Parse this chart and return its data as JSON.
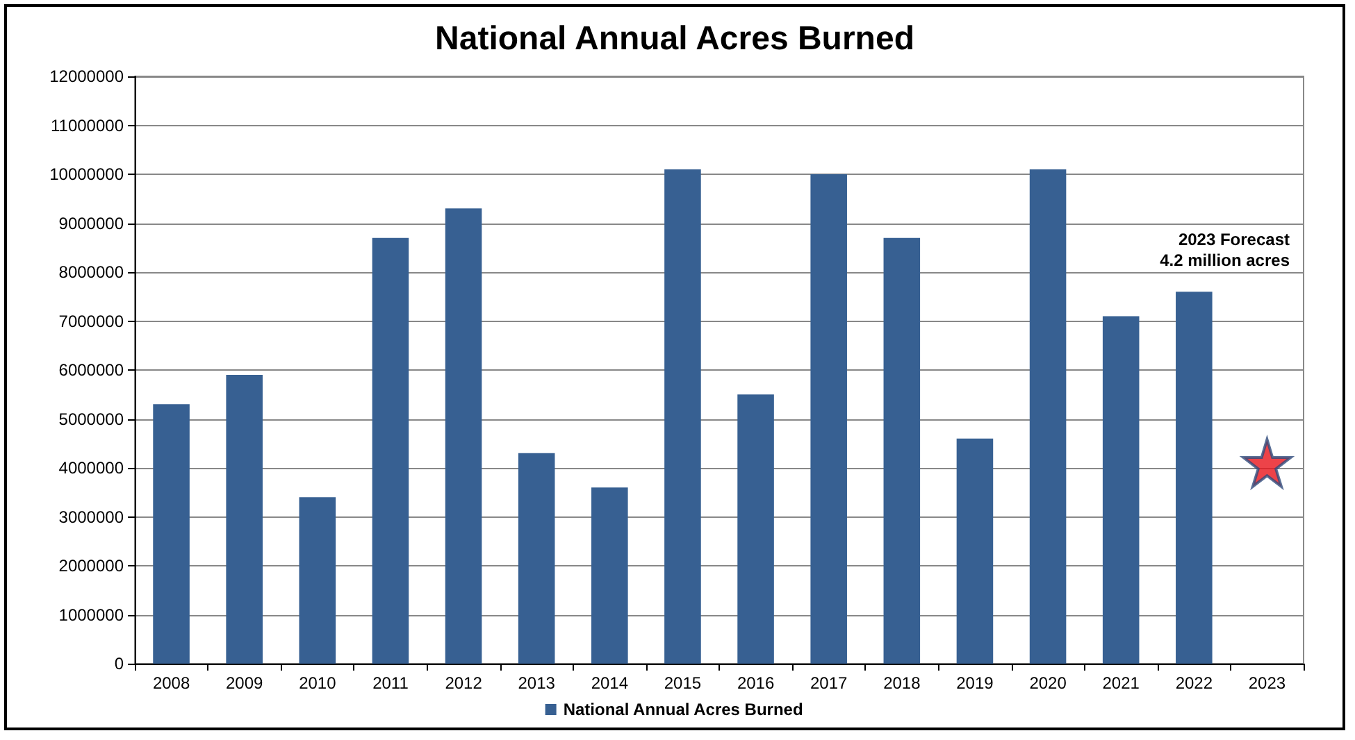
{
  "chart_data": {
    "type": "bar",
    "title": "National Annual Acres Burned",
    "categories": [
      "2008",
      "2009",
      "2010",
      "2011",
      "2012",
      "2013",
      "2014",
      "2015",
      "2016",
      "2017",
      "2018",
      "2019",
      "2020",
      "2021",
      "2022",
      "2023"
    ],
    "series": [
      {
        "name": "National Annual Acres Burned",
        "color": "#376092",
        "values": [
          5300000,
          5900000,
          3400000,
          8700000,
          9300000,
          4300000,
          3600000,
          10100000,
          5500000,
          10000000,
          8700000,
          4600000,
          10100000,
          7100000,
          7600000,
          null
        ]
      },
      {
        "type": "scatter",
        "marker": "star",
        "color": "#e8141b",
        "values": [
          null,
          null,
          null,
          null,
          null,
          null,
          null,
          null,
          null,
          null,
          null,
          null,
          null,
          null,
          null,
          4100000
        ]
      }
    ],
    "ylim": [
      0,
      12000000
    ],
    "yticks": [
      0,
      1000000,
      2000000,
      3000000,
      4000000,
      5000000,
      6000000,
      7000000,
      8000000,
      9000000,
      10000000,
      11000000,
      12000000
    ],
    "grid": "y",
    "legend": "bottom",
    "annotations": [
      "2023 Forecast\n4.2 million acres"
    ]
  }
}
